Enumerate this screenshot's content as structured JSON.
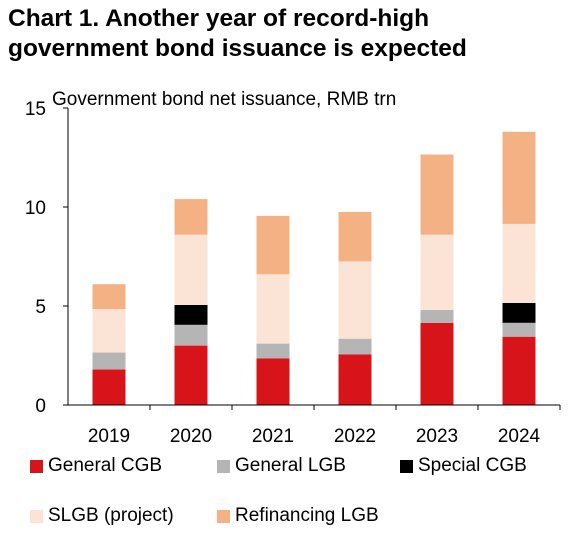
{
  "title_line1": "Chart 1. Another year of record-high",
  "title_line2": "government bond issuance is expected",
  "chart_data": {
    "type": "bar",
    "stacked": true,
    "ylabel": "Government bond net issuance, RMB trn",
    "xlabel": "",
    "ylim": [
      0,
      15
    ],
    "yticks": [
      0,
      5,
      10,
      15
    ],
    "grid": false,
    "legend_position": "bottom",
    "categories": [
      "2019",
      "2020",
      "2021",
      "2022",
      "2023",
      "2024"
    ],
    "series": [
      {
        "name": "General CGB",
        "color": "#d7141a",
        "values": [
          1.8,
          3.0,
          2.35,
          2.55,
          4.15,
          3.45
        ]
      },
      {
        "name": "General LGB",
        "color": "#b5b5b5",
        "values": [
          0.85,
          1.05,
          0.75,
          0.8,
          0.65,
          0.7
        ]
      },
      {
        "name": "Special CGB",
        "color": "#000000",
        "values": [
          0.0,
          1.0,
          0.0,
          0.0,
          0.0,
          1.0
        ]
      },
      {
        "name": "SLGB (project)",
        "color": "#fbe3d6",
        "values": [
          2.2,
          3.55,
          3.5,
          3.9,
          3.8,
          4.0
        ]
      },
      {
        "name": "Refinancing LGB",
        "color": "#f4b183",
        "values": [
          1.25,
          1.8,
          2.95,
          2.5,
          4.05,
          4.65
        ]
      }
    ]
  },
  "legend": [
    {
      "label": "General CGB",
      "color": "#d7141a"
    },
    {
      "label": "General LGB",
      "color": "#b5b5b5"
    },
    {
      "label": "Special CGB",
      "color": "#000000"
    },
    {
      "label": "SLGB (project)",
      "color": "#fbe3d6"
    },
    {
      "label": "Refinancing LGB",
      "color": "#f4b183"
    }
  ]
}
